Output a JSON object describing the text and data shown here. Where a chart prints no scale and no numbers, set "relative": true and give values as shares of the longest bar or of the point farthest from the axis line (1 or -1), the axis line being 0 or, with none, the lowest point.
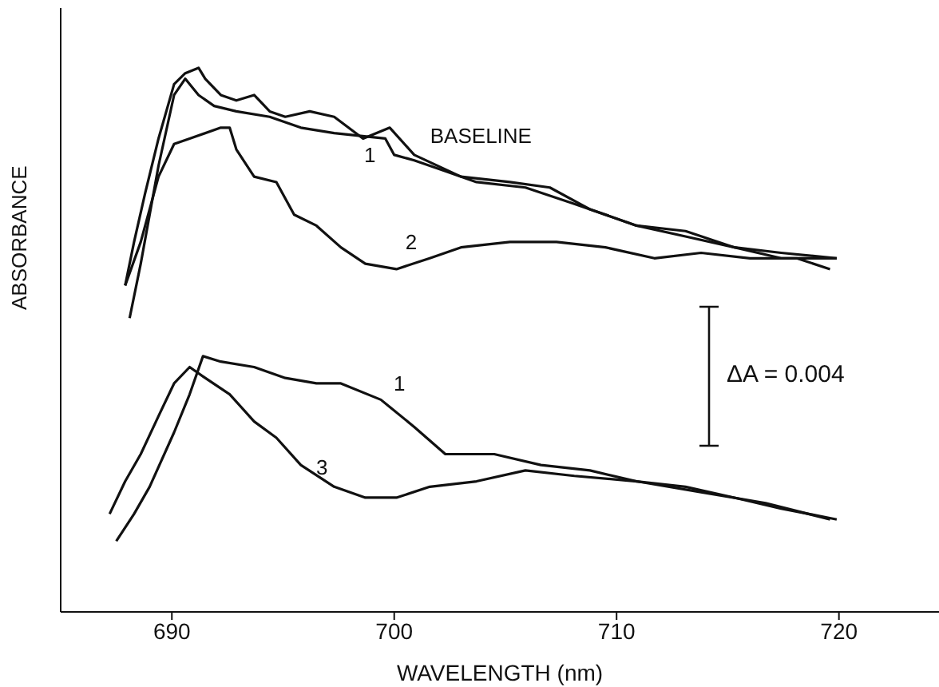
{
  "chart_data": {
    "type": "line",
    "relative": true,
    "xlabel": "WAVELENGTH (nm)",
    "ylabel": "ABSORBANCE",
    "xlim": [
      685,
      724.5
    ],
    "xticks": [
      690,
      700,
      710,
      720
    ],
    "legend": false,
    "grid": false,
    "marker": "none",
    "line_style": "solid",
    "annotations": [
      "ΔA = 0.004"
    ],
    "series": [
      {
        "name": "BASELINE",
        "color": "#111111",
        "x": [
          687.9,
          688.3,
          688.8,
          689.4,
          690.1,
          690.6,
          691.2,
          691.5,
          692.2,
          692.9,
          693.7,
          694.4,
          695.1,
          696.2,
          697.3,
          698.6,
          699.8,
          700.9,
          703.0,
          705.2,
          707.0,
          708.8,
          710.9,
          713.1,
          715.3,
          717.4,
          719.9
        ],
        "values": [
          0.6,
          0.68,
          0.77,
          0.87,
          0.97,
          0.99,
          1.0,
          0.98,
          0.95,
          0.94,
          0.95,
          0.92,
          0.91,
          0.92,
          0.91,
          0.87,
          0.89,
          0.84,
          0.8,
          0.79,
          0.78,
          0.74,
          0.71,
          0.7,
          0.67,
          0.65,
          0.65
        ]
      },
      {
        "name": "1",
        "color": "#111111",
        "x": [
          688.1,
          688.6,
          689.4,
          690.1,
          690.6,
          691.2,
          691.9,
          692.9,
          694.4,
          695.8,
          697.3,
          699.6,
          700.0,
          700.9,
          702.3,
          703.7,
          705.9,
          708.1,
          710.9,
          713.1,
          715.3,
          717.4,
          719.9
        ],
        "values": [
          0.54,
          0.64,
          0.82,
          0.95,
          0.98,
          0.95,
          0.93,
          0.92,
          0.91,
          0.89,
          0.88,
          0.87,
          0.84,
          0.83,
          0.81,
          0.79,
          0.78,
          0.75,
          0.71,
          0.69,
          0.67,
          0.66,
          0.65
        ]
      },
      {
        "name": "2",
        "color": "#111111",
        "x": [
          687.9,
          688.6,
          689.4,
          690.1,
          690.8,
          692.2,
          692.6,
          692.9,
          693.7,
          694.7,
          695.5,
          696.5,
          697.6,
          698.7,
          700.1,
          701.6,
          703.0,
          705.2,
          707.3,
          709.5,
          711.7,
          713.8,
          716.0,
          718.1,
          719.6
        ],
        "values": [
          0.6,
          0.68,
          0.8,
          0.86,
          0.87,
          0.89,
          0.89,
          0.85,
          0.8,
          0.79,
          0.73,
          0.71,
          0.67,
          0.64,
          0.63,
          0.65,
          0.67,
          0.68,
          0.68,
          0.67,
          0.65,
          0.66,
          0.65,
          0.65,
          0.63
        ]
      },
      {
        "name": "1",
        "color": "#111111",
        "x": [
          687.5,
          688.3,
          689.0,
          690.1,
          690.8,
          691.4,
          692.2,
          693.7,
          695.1,
          696.5,
          697.6,
          699.4,
          700.9,
          702.3,
          704.5,
          706.6,
          708.8,
          710.9,
          713.1,
          715.3,
          717.4,
          719.9
        ],
        "values": [
          0.13,
          0.18,
          0.23,
          0.33,
          0.4,
          0.47,
          0.46,
          0.45,
          0.43,
          0.42,
          0.42,
          0.39,
          0.34,
          0.29,
          0.29,
          0.27,
          0.26,
          0.24,
          0.23,
          0.21,
          0.19,
          0.17
        ]
      },
      {
        "name": "3",
        "color": "#111111",
        "x": [
          687.2,
          687.9,
          688.6,
          689.4,
          690.1,
          690.8,
          691.5,
          692.6,
          693.7,
          694.7,
          695.8,
          697.3,
          698.7,
          700.1,
          701.6,
          703.7,
          705.9,
          708.1,
          710.9,
          713.8,
          716.7,
          719.6
        ],
        "values": [
          0.18,
          0.24,
          0.29,
          0.36,
          0.42,
          0.45,
          0.43,
          0.4,
          0.35,
          0.32,
          0.27,
          0.23,
          0.21,
          0.21,
          0.23,
          0.24,
          0.26,
          0.25,
          0.24,
          0.22,
          0.2,
          0.17
        ]
      }
    ]
  }
}
